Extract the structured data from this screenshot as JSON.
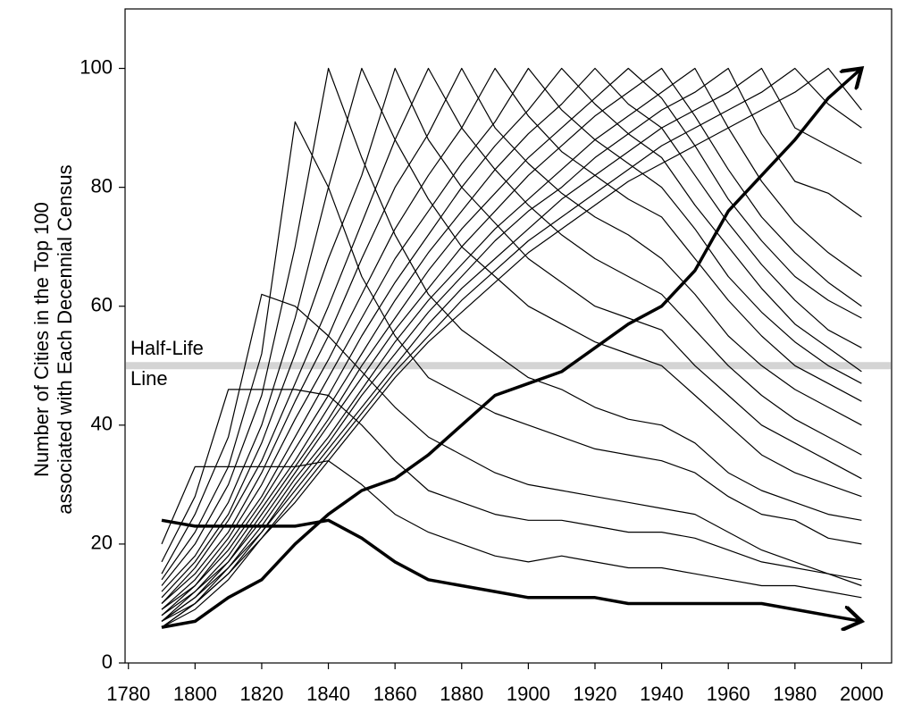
{
  "chart_data": {
    "type": "line",
    "ylabel": [
      "Number of Cities in the Top 100",
      "associated with Each Decennial Census"
    ],
    "x": [
      1790,
      1800,
      1810,
      1820,
      1830,
      1840,
      1850,
      1860,
      1870,
      1880,
      1890,
      1900,
      1910,
      1920,
      1930,
      1940,
      1950,
      1960,
      1970,
      1980,
      1990,
      2000
    ],
    "xlim": [
      1779,
      2009
    ],
    "xticks": [
      1780,
      1800,
      1820,
      1840,
      1860,
      1880,
      1900,
      1920,
      1940,
      1960,
      1980,
      2000
    ],
    "ylim": [
      0,
      110
    ],
    "yticks": [
      0,
      20,
      40,
      60,
      80,
      100
    ],
    "annotation": {
      "lines": [
        "Half-Life",
        "Line"
      ],
      "y": 50,
      "color": "#d4d4d4"
    },
    "series": [
      {
        "color": "#000000",
        "width": 3.5,
        "arrow": true,
        "values": [
          24,
          23,
          23,
          23,
          23,
          24,
          21,
          17,
          14,
          13,
          12,
          11,
          11,
          11,
          10,
          10,
          10,
          10,
          10,
          9,
          8,
          7
        ]
      },
      {
        "color": "#000000",
        "width": 1.2,
        "values": [
          20,
          33,
          33,
          33,
          33,
          34,
          30,
          25,
          22,
          20,
          18,
          17,
          18,
          17,
          16,
          16,
          15,
          14,
          13,
          13,
          12,
          11
        ]
      },
      {
        "color": "#000000",
        "width": 1.2,
        "values": [
          17,
          28,
          46,
          46,
          46,
          45,
          40,
          34,
          29,
          27,
          25,
          24,
          24,
          23,
          22,
          22,
          21,
          19,
          17,
          16,
          15,
          14
        ]
      },
      {
        "color": "#000000",
        "width": 1.2,
        "values": [
          15,
          25,
          38,
          62,
          60,
          55,
          49,
          43,
          38,
          35,
          32,
          30,
          29,
          28,
          27,
          26,
          25,
          22,
          19,
          17,
          15,
          13
        ]
      },
      {
        "color": "#000000",
        "width": 1.2,
        "values": [
          14,
          22,
          33,
          52,
          91,
          80,
          65,
          55,
          48,
          45,
          42,
          40,
          38,
          36,
          35,
          34,
          32,
          28,
          25,
          24,
          21,
          20
        ]
      },
      {
        "color": "#000000",
        "width": 1.2,
        "values": [
          13,
          20,
          30,
          45,
          70,
          100,
          85,
          72,
          62,
          56,
          52,
          48,
          46,
          43,
          41,
          40,
          37,
          32,
          29,
          27,
          25,
          24
        ]
      },
      {
        "color": "#000000",
        "width": 1.2,
        "values": [
          12,
          18,
          27,
          40,
          58,
          80,
          100,
          88,
          78,
          70,
          65,
          60,
          57,
          54,
          52,
          50,
          45,
          40,
          35,
          32,
          30,
          28
        ]
      },
      {
        "color": "#000000",
        "width": 1.2,
        "values": [
          11,
          17,
          25,
          37,
          52,
          68,
          82,
          100,
          88,
          80,
          74,
          68,
          64,
          60,
          58,
          56,
          50,
          45,
          40,
          37,
          34,
          31
        ]
      },
      {
        "color": "#000000",
        "width": 1.2,
        "values": [
          10,
          16,
          24,
          34,
          47,
          60,
          74,
          88,
          100,
          90,
          83,
          77,
          72,
          68,
          65,
          62,
          56,
          50,
          45,
          41,
          38,
          35
        ]
      },
      {
        "color": "#000000",
        "width": 1.2,
        "values": [
          10,
          15,
          22,
          32,
          44,
          55,
          68,
          80,
          89,
          100,
          90,
          84,
          79,
          75,
          72,
          68,
          62,
          55,
          50,
          46,
          43,
          40
        ]
      },
      {
        "color": "#000000",
        "width": 1.2,
        "values": [
          9,
          14,
          21,
          30,
          41,
          51,
          62,
          73,
          82,
          90,
          100,
          92,
          86,
          82,
          78,
          75,
          68,
          61,
          55,
          50,
          47,
          44
        ]
      },
      {
        "color": "#000000",
        "width": 1.2,
        "values": [
          9,
          13,
          20,
          28,
          38,
          48,
          58,
          68,
          76,
          84,
          91,
          100,
          93,
          88,
          84,
          80,
          73,
          65,
          59,
          54,
          50,
          47
        ]
      },
      {
        "color": "#000000",
        "width": 1.2,
        "values": [
          8,
          13,
          19,
          27,
          36,
          45,
          55,
          64,
          72,
          80,
          87,
          93,
          100,
          94,
          89,
          85,
          77,
          70,
          63,
          57,
          53,
          49
        ]
      },
      {
        "color": "#000000",
        "width": 1.2,
        "values": [
          8,
          12,
          18,
          26,
          34,
          43,
          52,
          61,
          69,
          76,
          83,
          89,
          94,
          100,
          94,
          90,
          82,
          74,
          67,
          61,
          56,
          53
        ]
      },
      {
        "color": "#000000",
        "width": 1.2,
        "values": [
          7,
          12,
          17,
          25,
          33,
          41,
          50,
          58,
          66,
          73,
          79,
          85,
          90,
          95,
          100,
          95,
          87,
          78,
          71,
          65,
          61,
          58
        ]
      },
      {
        "color": "#000000",
        "width": 1.2,
        "values": [
          7,
          11,
          17,
          24,
          32,
          40,
          48,
          56,
          63,
          70,
          76,
          82,
          87,
          92,
          96,
          100,
          92,
          83,
          75,
          69,
          64,
          60
        ]
      },
      {
        "color": "#000000",
        "width": 1.2,
        "values": [
          7,
          11,
          16,
          23,
          31,
          38,
          46,
          54,
          61,
          67,
          73,
          78,
          83,
          88,
          92,
          96,
          100,
          90,
          81,
          74,
          69,
          65
        ]
      },
      {
        "color": "#000000",
        "width": 1.2,
        "values": [
          7,
          10,
          16,
          22,
          30,
          37,
          45,
          52,
          59,
          65,
          71,
          76,
          80,
          85,
          89,
          93,
          96,
          100,
          89,
          81,
          79,
          75
        ]
      },
      {
        "color": "#000000",
        "width": 1.2,
        "values": [
          6,
          10,
          15,
          22,
          29,
          36,
          43,
          50,
          57,
          63,
          68,
          73,
          78,
          82,
          86,
          90,
          93,
          96,
          100,
          90,
          87,
          84
        ]
      },
      {
        "color": "#000000",
        "width": 1.2,
        "values": [
          6,
          10,
          15,
          21,
          28,
          35,
          42,
          49,
          55,
          61,
          66,
          71,
          75,
          79,
          83,
          87,
          90,
          93,
          96,
          100,
          94,
          90
        ]
      },
      {
        "color": "#000000",
        "width": 1.2,
        "values": [
          6,
          9,
          14,
          21,
          27,
          34,
          41,
          48,
          54,
          59,
          64,
          69,
          73,
          77,
          81,
          84,
          87,
          90,
          93,
          96,
          100,
          93
        ]
      },
      {
        "color": "#000000",
        "width": 3.5,
        "arrow": true,
        "values": [
          6,
          7,
          11,
          14,
          20,
          25,
          29,
          31,
          35,
          40,
          45,
          47,
          49,
          53,
          57,
          60,
          66,
          76,
          82,
          88,
          95,
          100
        ]
      }
    ]
  }
}
